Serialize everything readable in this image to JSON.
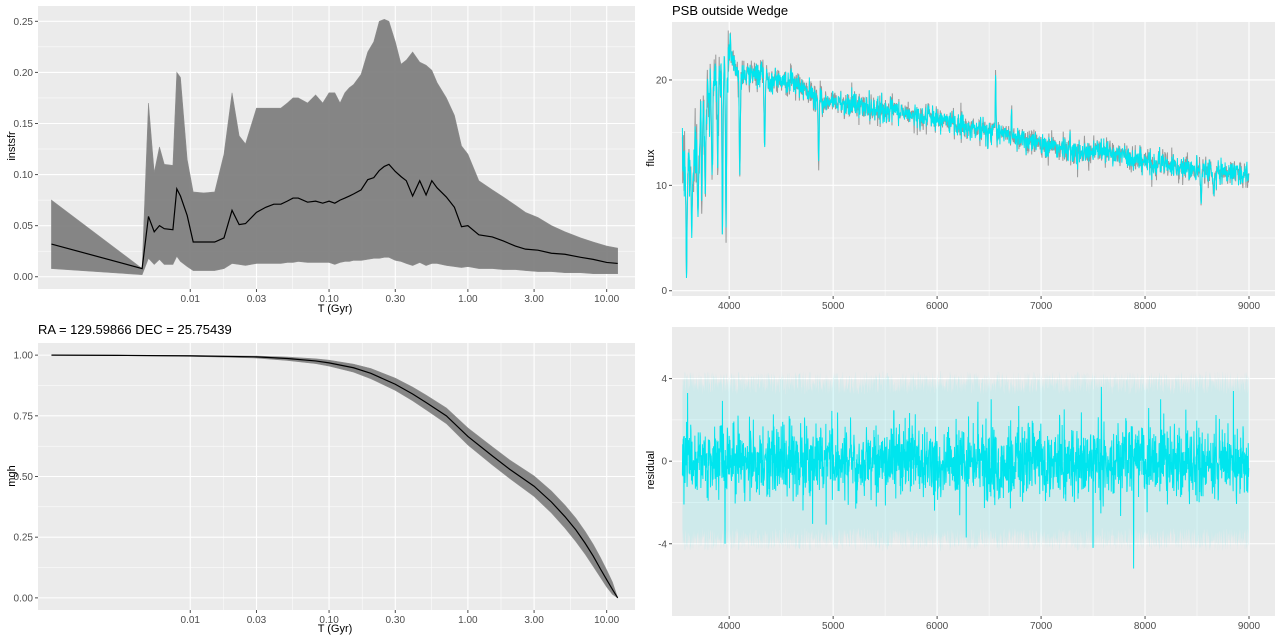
{
  "colors": {
    "panel_bg": "#ebebeb",
    "grid_major": "#ffffff",
    "ribbon": "#7f7f7f",
    "line": "#000000",
    "cyan": "#00e5ee",
    "spectrum_gray": "#999999",
    "tick": "#4d4d4d"
  },
  "chart_data": [
    {
      "id": "instsfr",
      "type": "area",
      "title": "",
      "xlabel": "T (Gyr)",
      "ylabel": "instsfr",
      "x_scale": "log",
      "xlim": [
        0.0008,
        16
      ],
      "ylim": [
        -0.012,
        0.265
      ],
      "x_ticks": [
        0.01,
        0.03,
        0.1,
        0.3,
        1,
        3,
        10
      ],
      "x_tick_labels": [
        "0.01",
        "0.03",
        "0.10",
        "0.30",
        "1.00",
        "3.00",
        "10.00"
      ],
      "y_ticks": [
        0,
        0.05,
        0.1,
        0.15,
        0.2,
        0.25
      ],
      "y_tick_labels": [
        "0.00",
        "0.05",
        "0.10",
        "0.15",
        "0.20",
        "0.25"
      ],
      "grid": true,
      "x": [
        0.001,
        0.0045,
        0.005,
        0.0055,
        0.006,
        0.0065,
        0.0075,
        0.008,
        0.0085,
        0.0095,
        0.0105,
        0.0125,
        0.015,
        0.0175,
        0.02,
        0.0225,
        0.025,
        0.03,
        0.035,
        0.04,
        0.045,
        0.05,
        0.055,
        0.06,
        0.07,
        0.08,
        0.09,
        0.1,
        0.11,
        0.12,
        0.13,
        0.14,
        0.15,
        0.17,
        0.19,
        0.21,
        0.23,
        0.25,
        0.27,
        0.3,
        0.33,
        0.36,
        0.4,
        0.45,
        0.5,
        0.55,
        0.6,
        0.7,
        0.8,
        0.9,
        1.0,
        1.2,
        1.5,
        1.8,
        2.2,
        2.6,
        3.2,
        4.0,
        5.0,
        6.5,
        8.0,
        10.0,
        12.0
      ],
      "series": [
        {
          "role": "median",
          "values": [
            0.032,
            0.008,
            0.059,
            0.044,
            0.05,
            0.047,
            0.046,
            0.086,
            0.079,
            0.06,
            0.034,
            0.034,
            0.034,
            0.038,
            0.065,
            0.051,
            0.052,
            0.063,
            0.068,
            0.071,
            0.071,
            0.074,
            0.077,
            0.077,
            0.073,
            0.074,
            0.072,
            0.074,
            0.072,
            0.075,
            0.077,
            0.079,
            0.081,
            0.085,
            0.095,
            0.097,
            0.104,
            0.108,
            0.11,
            0.103,
            0.098,
            0.094,
            0.079,
            0.094,
            0.08,
            0.094,
            0.087,
            0.078,
            0.068,
            0.049,
            0.05,
            0.041,
            0.039,
            0.035,
            0.03,
            0.027,
            0.026,
            0.023,
            0.022,
            0.019,
            0.017,
            0.014,
            0.013
          ]
        },
        {
          "role": "upper",
          "values": [
            0.075,
            0.008,
            0.17,
            0.102,
            0.127,
            0.11,
            0.109,
            0.2,
            0.195,
            0.115,
            0.083,
            0.082,
            0.083,
            0.12,
            0.18,
            0.138,
            0.13,
            0.165,
            0.165,
            0.165,
            0.165,
            0.17,
            0.175,
            0.175,
            0.17,
            0.178,
            0.17,
            0.18,
            0.18,
            0.17,
            0.18,
            0.185,
            0.188,
            0.198,
            0.22,
            0.23,
            0.25,
            0.252,
            0.25,
            0.23,
            0.208,
            0.212,
            0.22,
            0.21,
            0.207,
            0.202,
            0.19,
            0.175,
            0.158,
            0.128,
            0.12,
            0.094,
            0.085,
            0.078,
            0.07,
            0.063,
            0.058,
            0.05,
            0.044,
            0.038,
            0.034,
            0.03,
            0.028
          ]
        },
        {
          "role": "lower",
          "values": [
            0.008,
            0.002,
            0.018,
            0.012,
            0.017,
            0.012,
            0.012,
            0.02,
            0.015,
            0.01,
            0.006,
            0.006,
            0.006,
            0.008,
            0.013,
            0.012,
            0.011,
            0.013,
            0.013,
            0.013,
            0.013,
            0.014,
            0.014,
            0.015,
            0.014,
            0.014,
            0.014,
            0.014,
            0.012,
            0.014,
            0.015,
            0.015,
            0.016,
            0.016,
            0.017,
            0.018,
            0.018,
            0.019,
            0.019,
            0.016,
            0.015,
            0.013,
            0.011,
            0.014,
            0.011,
            0.013,
            0.013,
            0.011,
            0.01,
            0.009,
            0.01,
            0.008,
            0.008,
            0.007,
            0.007,
            0.006,
            0.005,
            0.005,
            0.004,
            0.004,
            0.003,
            0.003,
            0.003
          ]
        }
      ]
    },
    {
      "id": "mgh",
      "type": "area",
      "title": "RA = 129.59866  DEC = 25.75439",
      "xlabel": "T (Gyr)",
      "ylabel": "mgh",
      "x_scale": "log",
      "xlim": [
        0.0008,
        16
      ],
      "ylim": [
        -0.05,
        1.05
      ],
      "x_ticks": [
        0.01,
        0.03,
        0.1,
        0.3,
        1,
        3,
        10
      ],
      "x_tick_labels": [
        "0.01",
        "0.03",
        "0.10",
        "0.30",
        "1.00",
        "3.00",
        "10.00"
      ],
      "y_ticks": [
        0,
        0.25,
        0.5,
        0.75,
        1
      ],
      "y_tick_labels": [
        "0.00",
        "0.25",
        "0.50",
        "0.75",
        "1.00"
      ],
      "grid": true,
      "x": [
        0.001,
        0.003,
        0.01,
        0.03,
        0.05,
        0.08,
        0.1,
        0.15,
        0.2,
        0.3,
        0.4,
        0.5,
        0.7,
        1.0,
        1.5,
        2.0,
        3.0,
        4.0,
        5.0,
        6.0,
        7.0,
        8.0,
        9.0,
        10.0,
        11.0,
        12.0
      ],
      "series": [
        {
          "role": "median",
          "values": [
            1.0,
            0.999,
            0.997,
            0.993,
            0.986,
            0.976,
            0.968,
            0.948,
            0.925,
            0.88,
            0.84,
            0.805,
            0.75,
            0.665,
            0.585,
            0.53,
            0.46,
            0.395,
            0.335,
            0.28,
            0.225,
            0.172,
            0.12,
            0.075,
            0.035,
            0.0
          ]
        },
        {
          "role": "upper",
          "values": [
            1.0,
            1.0,
            0.999,
            0.996,
            0.992,
            0.985,
            0.979,
            0.963,
            0.945,
            0.905,
            0.868,
            0.835,
            0.782,
            0.7,
            0.622,
            0.568,
            0.502,
            0.44,
            0.382,
            0.328,
            0.273,
            0.22,
            0.167,
            0.115,
            0.065,
            0.0
          ]
        },
        {
          "role": "lower",
          "values": [
            1.0,
            0.998,
            0.995,
            0.988,
            0.978,
            0.965,
            0.955,
            0.93,
            0.903,
            0.855,
            0.812,
            0.775,
            0.718,
            0.63,
            0.548,
            0.492,
            0.418,
            0.35,
            0.288,
            0.232,
            0.18,
            0.13,
            0.085,
            0.045,
            0.015,
            0.0
          ]
        }
      ]
    },
    {
      "id": "flux",
      "type": "line",
      "title": "PSB outside Wedge",
      "xlabel": "",
      "ylabel": "flux",
      "xlim": [
        3450,
        9250
      ],
      "ylim": [
        -0.5,
        25.5
      ],
      "x_ticks": [
        4000,
        5000,
        6000,
        7000,
        8000,
        9000
      ],
      "x_tick_labels": [
        "4000",
        "5000",
        "6000",
        "7000",
        "8000",
        "9000"
      ],
      "y_ticks": [
        0,
        10,
        20
      ],
      "y_tick_labels": [
        "0",
        "10",
        "20"
      ],
      "grid": true,
      "continuum": {
        "x": [
          3550,
          3600,
          3650,
          3700,
          3750,
          3800,
          3850,
          3900,
          3950,
          4000,
          4050,
          4100,
          4200,
          4300,
          4400,
          4500,
          4600,
          4700,
          4800,
          4900,
          5000,
          5200,
          5400,
          5600,
          5800,
          6000,
          6200,
          6400,
          6600,
          6800,
          7000,
          7200,
          7400,
          7600,
          7800,
          8000,
          8200,
          8400,
          8600,
          8800,
          9000
        ],
        "y": [
          11,
          11.5,
          12.5,
          14,
          16,
          18.5,
          19.5,
          20.5,
          21.5,
          22.5,
          21.5,
          20.5,
          20.5,
          20.5,
          20,
          20,
          19.8,
          19.2,
          18.5,
          18,
          18,
          17.6,
          17.3,
          17,
          16.6,
          16.3,
          15.8,
          15.3,
          15,
          14.5,
          14,
          13.5,
          13.2,
          13.2,
          12.8,
          12.2,
          12,
          11.6,
          11.3,
          11.2,
          11
        ]
      },
      "absorption_lines": [
        {
          "x": 3590,
          "y": 1.0
        },
        {
          "x": 3640,
          "y": 5.0
        },
        {
          "x": 3700,
          "y": 7.0
        },
        {
          "x": 3735,
          "y": 8.0
        },
        {
          "x": 3770,
          "y": 9.0
        },
        {
          "x": 3835,
          "y": 11.0
        },
        {
          "x": 3890,
          "y": 11.5
        },
        {
          "x": 3935,
          "y": 5.0
        },
        {
          "x": 3970,
          "y": 6.0
        },
        {
          "x": 4102,
          "y": 11.0
        },
        {
          "x": 4341,
          "y": 13.5
        },
        {
          "x": 4861,
          "y": 12.3
        },
        {
          "x": 8540,
          "y": 8.2
        },
        {
          "x": 8662,
          "y": 9.0
        }
      ],
      "emission_lines": [
        {
          "x": 3727,
          "y": 18.0
        },
        {
          "x": 4010,
          "y": 24.5
        },
        {
          "x": 6563,
          "y": 20.7
        },
        {
          "x": 6716,
          "y": 17.3
        }
      ]
    },
    {
      "id": "residual",
      "type": "line",
      "title": "",
      "xlabel": "",
      "ylabel": "residual",
      "xlim": [
        3450,
        9250
      ],
      "ylim": [
        -7.5,
        6.5
      ],
      "x_ticks": [
        4000,
        5000,
        6000,
        7000,
        8000,
        9000
      ],
      "x_tick_labels": [
        "4000",
        "5000",
        "6000",
        "7000",
        "8000",
        "9000"
      ],
      "y_ticks": [
        -4,
        0,
        4
      ],
      "y_tick_labels": [
        "-4",
        "0",
        "4"
      ],
      "grid": true,
      "band_halfwidth": 3.8,
      "noise_sigma": 0.9,
      "spikes": [
        {
          "x": 3600,
          "y": 3.3
        },
        {
          "x": 3960,
          "y": -4.0
        },
        {
          "x": 6280,
          "y": -3.7
        },
        {
          "x": 6520,
          "y": 3.0
        },
        {
          "x": 7500,
          "y": -4.2
        },
        {
          "x": 7580,
          "y": 3.6
        },
        {
          "x": 7890,
          "y": -5.2
        },
        {
          "x": 8150,
          "y": 3.0
        },
        {
          "x": 8850,
          "y": 3.4
        }
      ]
    }
  ]
}
